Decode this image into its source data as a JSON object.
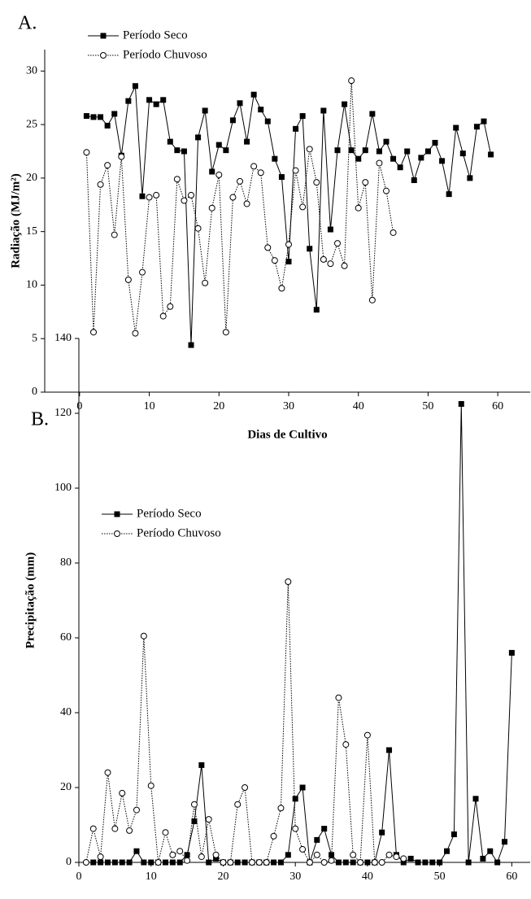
{
  "chart_data": [
    {
      "type": "line",
      "panel_label": "A.",
      "ylabel": "Radiação (MJ/m²)",
      "xlabel": "Dias de Cultivo",
      "xlim": [
        -5,
        65
      ],
      "ylim": [
        0,
        32
      ],
      "xticks": [
        0,
        10,
        20,
        30,
        40,
        50,
        60
      ],
      "yticks": [
        0,
        5,
        10,
        15,
        20,
        25,
        30
      ],
      "series": [
        {
          "name": "Período Seco",
          "color": "#000000",
          "marker": "square",
          "line_style": "solid",
          "x": [
            1,
            2,
            3,
            4,
            5,
            6,
            7,
            8,
            9,
            10,
            11,
            12,
            13,
            14,
            15,
            16,
            17,
            18,
            19,
            20,
            21,
            22,
            23,
            24,
            25,
            26,
            27,
            28,
            29,
            30,
            31,
            32,
            33,
            34,
            35,
            36,
            37,
            38,
            39,
            40,
            41,
            42,
            43,
            44,
            45,
            46,
            47,
            48,
            49,
            50,
            51,
            52,
            53,
            54,
            55,
            56,
            57,
            58,
            59
          ],
          "values": [
            25.8,
            25.7,
            25.7,
            24.9,
            26.0,
            22.1,
            27.2,
            28.6,
            18.3,
            27.3,
            26.9,
            27.3,
            23.4,
            22.6,
            22.5,
            4.4,
            23.8,
            26.3,
            20.6,
            23.1,
            22.6,
            25.4,
            27.0,
            23.4,
            27.8,
            26.4,
            25.3,
            21.8,
            20.1,
            12.2,
            24.6,
            25.8,
            13.4,
            7.7,
            26.3,
            15.2,
            22.6,
            26.9,
            22.6,
            21.8,
            22.6,
            26.0,
            22.5,
            23.4,
            21.8,
            21.0,
            22.5,
            19.8,
            21.9,
            22.5,
            23.3,
            21.6,
            18.5,
            24.7,
            22.3,
            20.0,
            24.8,
            25.3,
            22.2
          ]
        },
        {
          "name": "Período Chuvoso",
          "color": "#000000",
          "marker": "circle",
          "line_style": "dotted",
          "x": [
            1,
            2,
            3,
            4,
            5,
            6,
            7,
            8,
            9,
            10,
            11,
            12,
            13,
            14,
            15,
            16,
            17,
            18,
            19,
            20,
            21,
            22,
            23,
            24,
            25,
            26,
            27,
            28,
            29,
            30,
            31,
            32,
            33,
            34,
            35,
            36,
            37,
            38,
            39,
            40,
            41,
            42,
            43,
            44,
            45
          ],
          "values": [
            22.4,
            5.6,
            19.4,
            21.2,
            14.7,
            22.0,
            10.5,
            5.5,
            11.2,
            18.2,
            18.4,
            7.1,
            8.0,
            19.9,
            17.9,
            18.4,
            15.3,
            10.2,
            17.2,
            20.3,
            5.6,
            18.2,
            19.7,
            17.6,
            21.1,
            20.5,
            13.5,
            12.3,
            9.7,
            13.8,
            20.7,
            17.3,
            22.7,
            19.6,
            12.4,
            12.0,
            13.9,
            11.8,
            29.1,
            17.2,
            19.6,
            8.6,
            21.4,
            18.8,
            14.9
          ]
        }
      ]
    },
    {
      "type": "line",
      "panel_label": "B.",
      "ylabel": "Precipitação (mm)",
      "xlim": [
        0,
        63
      ],
      "ylim": [
        0,
        140
      ],
      "xticks": [
        0,
        10,
        20,
        30,
        40,
        50,
        60
      ],
      "yticks": [
        0,
        20,
        40,
        60,
        80,
        100,
        120,
        140
      ],
      "series": [
        {
          "name": "Período Seco",
          "color": "#000000",
          "marker": "square",
          "line_style": "solid",
          "x": [
            2,
            3,
            4,
            5,
            6,
            7,
            8,
            9,
            10,
            11,
            12,
            13,
            14,
            15,
            16,
            17,
            18,
            19,
            20,
            21,
            22,
            23,
            24,
            25,
            26,
            27,
            28,
            29,
            30,
            31,
            32,
            33,
            34,
            35,
            36,
            37,
            38,
            39,
            40,
            41,
            42,
            43,
            44,
            45,
            46,
            47,
            48,
            49,
            50,
            51,
            52,
            53,
            54,
            55,
            56,
            57,
            58,
            59,
            60
          ],
          "values": [
            0,
            0,
            0,
            0,
            0,
            0,
            3,
            0,
            0,
            0,
            0,
            0,
            0,
            2,
            11,
            26,
            0,
            1,
            0,
            0,
            0,
            0,
            0,
            0,
            0,
            0,
            0,
            2,
            17,
            20,
            0,
            6,
            9,
            2,
            0,
            0,
            0,
            0,
            0,
            0,
            8,
            30,
            2,
            0,
            1,
            0,
            0,
            0,
            0,
            3,
            7.5,
            122.5,
            0,
            17,
            1,
            3,
            0,
            5.5,
            56
          ]
        },
        {
          "name": "Período Chuvoso",
          "color": "#000000",
          "marker": "circle",
          "line_style": "dotted",
          "x": [
            1,
            2,
            3,
            4,
            5,
            6,
            7,
            8,
            9,
            10,
            11,
            12,
            13,
            14,
            15,
            16,
            17,
            18,
            19,
            20,
            21,
            22,
            23,
            24,
            25,
            26,
            27,
            28,
            29,
            30,
            31,
            32,
            33,
            34,
            35,
            36,
            37,
            38,
            39,
            40,
            41,
            42,
            43,
            44,
            45
          ],
          "values": [
            0,
            9,
            1.5,
            24,
            9,
            18.5,
            8.5,
            14,
            60.5,
            20.5,
            0,
            8,
            2,
            3,
            0.5,
            15.5,
            1.5,
            11.5,
            2,
            0,
            0,
            15.5,
            20,
            0,
            0,
            0,
            7,
            14.5,
            75,
            9,
            3.5,
            0,
            2,
            0,
            0.5,
            44,
            31.5,
            2,
            0,
            34,
            0,
            0,
            2,
            1.5,
            1
          ]
        }
      ]
    }
  ]
}
